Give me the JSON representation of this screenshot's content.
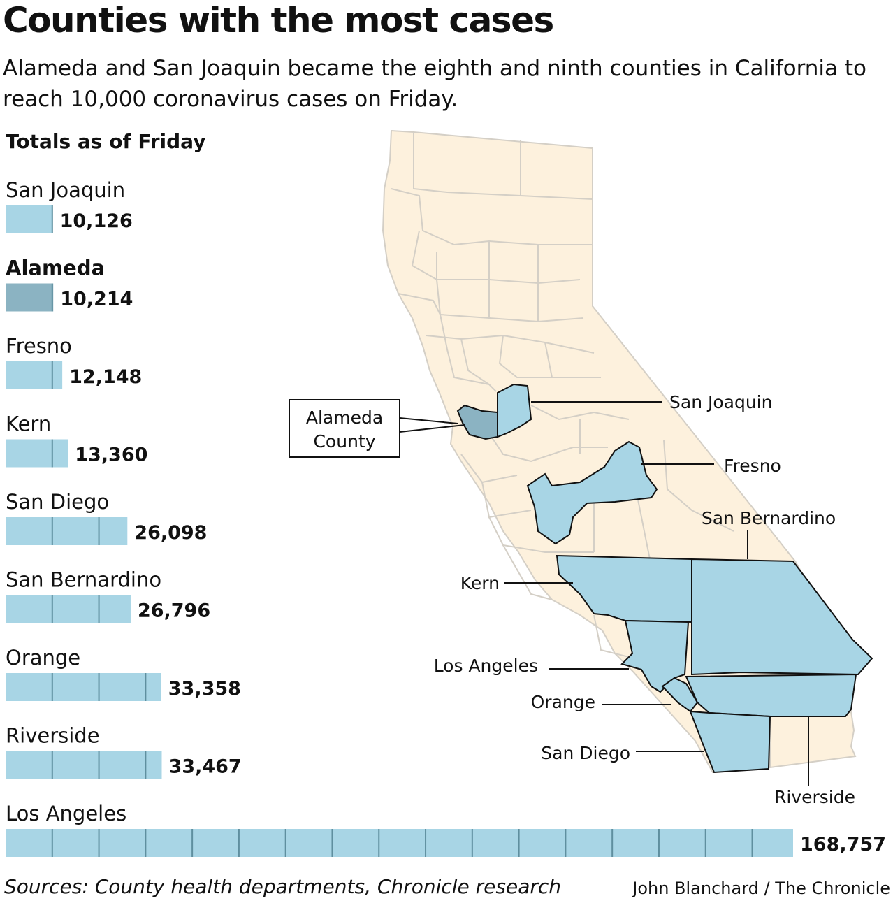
{
  "title": "Counties with the most cases",
  "subtitle": "Alameda and San Joaquin became the eighth and ninth counties in California to reach 10,000 coronavirus cases on Friday.",
  "section_label": "Totals as of Friday",
  "credits": {
    "sources": "Sources: County health departments, Chronicle research",
    "byline": "John Blanchard / The Chronicle"
  },
  "colors": {
    "bar": "#a8d5e5",
    "bar_highlight": "#8bb3c2",
    "bar_divider": "#5f8f9f",
    "state_fill": "#fdf1dd",
    "county_line": "#d4cfc6",
    "highlight_outline": "#111111"
  },
  "chart_data": {
    "type": "bar",
    "orientation": "horizontal",
    "units_per_segment": 10000,
    "categories": [
      "San Joaquin",
      "Alameda",
      "Fresno",
      "Kern",
      "San Diego",
      "San Bernardino",
      "Orange",
      "Riverside",
      "Los Angeles"
    ],
    "values": [
      10126,
      10214,
      12148,
      13360,
      26098,
      26796,
      33358,
      33467,
      168757
    ],
    "value_labels": [
      "10,126",
      "10,214",
      "12,148",
      "13,360",
      "26,098",
      "26,796",
      "33,358",
      "33,467",
      "168,757"
    ],
    "highlight": "Alameda",
    "xlim": [
      0,
      170000
    ]
  },
  "map": {
    "callout_box": [
      "Alameda",
      "County"
    ],
    "labels": [
      "San Joaquin",
      "Fresno",
      "San Bernardino",
      "Kern",
      "Los Angeles",
      "Orange",
      "San Diego",
      "Riverside"
    ]
  }
}
